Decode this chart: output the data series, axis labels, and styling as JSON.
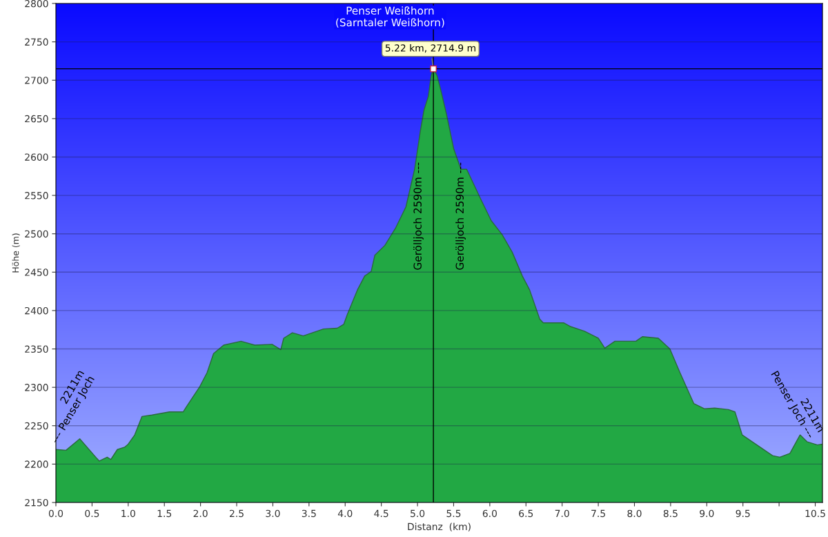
{
  "chart_data": {
    "type": "area",
    "xlabel": "Distanz  (km)",
    "ylabel": "Höhe (m)",
    "x": [
      0.0,
      0.14,
      0.33,
      0.57,
      0.6,
      0.71,
      0.76,
      0.85,
      0.95,
      1.0,
      1.09,
      1.19,
      1.33,
      1.57,
      1.76,
      1.8,
      1.99,
      2.09,
      2.18,
      2.32,
      2.56,
      2.75,
      2.99,
      3.11,
      3.15,
      3.27,
      3.42,
      3.61,
      3.7,
      3.89,
      3.98,
      4.03,
      4.17,
      4.27,
      4.36,
      4.41,
      4.55,
      4.7,
      4.84,
      4.96,
      5.04,
      5.09,
      5.15,
      5.19,
      5.22,
      5.27,
      5.32,
      5.4,
      5.5,
      5.6,
      5.68,
      5.77,
      5.88,
      6.02,
      6.17,
      6.31,
      6.45,
      6.55,
      6.69,
      6.74,
      7.02,
      7.12,
      7.31,
      7.5,
      7.59,
      7.73,
      8.02,
      8.11,
      8.33,
      8.49,
      8.63,
      8.82,
      8.97,
      9.11,
      9.3,
      9.39,
      9.49,
      9.63,
      9.77,
      9.91,
      10.01,
      10.15,
      10.29,
      10.39,
      10.53,
      10.6
    ],
    "series": [
      {
        "color": "#22a844",
        "values": [
          2219,
          2218,
          2233,
          2207,
          2204,
          2209,
          2206,
          2219,
          2222,
          2226,
          2238,
          2262,
          2264,
          2268,
          2268,
          2274,
          2301,
          2319,
          2344,
          2355,
          2360,
          2355,
          2356,
          2349,
          2364,
          2371,
          2367,
          2373,
          2376,
          2377,
          2382,
          2395,
          2427,
          2445,
          2451,
          2472,
          2485,
          2508,
          2535,
          2584,
          2634,
          2661,
          2679,
          2706,
          2714.9,
          2706,
          2688,
          2656,
          2611,
          2584,
          2584,
          2566,
          2544,
          2517,
          2499,
          2476,
          2445,
          2427,
          2389,
          2384,
          2384,
          2379,
          2373,
          2364,
          2351,
          2360,
          2360,
          2366,
          2364,
          2350,
          2319,
          2279,
          2272,
          2273,
          2271,
          2268,
          2238,
          2229,
          2220,
          2211,
          2209,
          2214,
          2238,
          2229,
          2225,
          2226
        ]
      }
    ],
    "xlim": [
      0,
      10.6
    ],
    "ylim": [
      2150,
      2800
    ],
    "xticks": [
      {
        "value": 0,
        "label": "0.0"
      },
      0.5,
      {
        "value": 1,
        "label": "1.0"
      },
      1.5,
      {
        "value": 2,
        "label": "2.0"
      },
      2.5,
      {
        "value": 3,
        "label": "3.0"
      },
      3.5,
      {
        "value": 4,
        "label": "4.0"
      },
      4.5,
      {
        "value": 5,
        "label": "5.0"
      },
      5.5,
      {
        "value": 6,
        "label": "6.0"
      },
      6.5,
      {
        "value": 7,
        "label": "7.0"
      },
      7.5,
      {
        "value": 8,
        "label": "8.0"
      },
      8.5,
      {
        "value": 9,
        "label": "9.0"
      },
      9.5,
      {
        "value": 10,
        "label": null
      },
      10.5
    ],
    "yticks": [
      2150,
      2200,
      2250,
      2300,
      2350,
      2400,
      2450,
      2500,
      2550,
      2600,
      2650,
      2700,
      2750,
      2800
    ],
    "grid": "y",
    "ref_lines": [
      {
        "axis": "x",
        "value": 5.22,
        "color": "#000000"
      },
      {
        "axis": "y",
        "value": 2714.9,
        "color": "#000000"
      }
    ],
    "annotations": [
      "Penser Weißhorn\n(Sarntaler Weißhorn)",
      {
        "text": "5.22 km, 2714.9 m",
        "x": 5.22,
        "y": 2714.9
      },
      "2211m\n--- Penser Joch",
      "2211m\nPenser Joch ---",
      "Gerölljoch 2590m ---",
      "Gerölljoch 2590m ---"
    ]
  }
}
